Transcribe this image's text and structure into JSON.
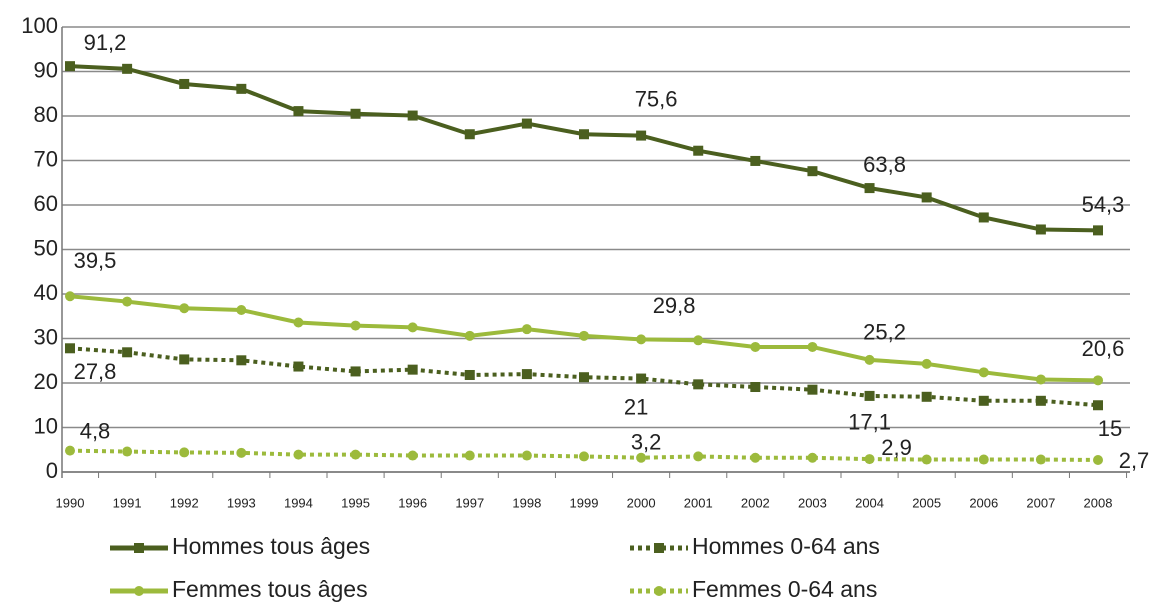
{
  "chart_data": {
    "type": "line",
    "categories": [
      "1990",
      "1991",
      "1992",
      "1993",
      "1994",
      "1995",
      "1996",
      "1997",
      "1998",
      "1999",
      "2000",
      "2001",
      "2002",
      "2003",
      "2004",
      "2005",
      "2006",
      "2007",
      "2008"
    ],
    "ylim": [
      0,
      100
    ],
    "yticks": [
      0,
      10,
      20,
      30,
      40,
      50,
      60,
      70,
      80,
      90,
      100
    ],
    "grid": true,
    "series": [
      {
        "name": "Hommes tous âges",
        "color": "#4b5f1f",
        "marker": "square",
        "dash": "solid",
        "values": [
          91.2,
          90.6,
          87.2,
          86.1,
          81.1,
          80.5,
          80.1,
          75.9,
          78.3,
          75.9,
          75.6,
          72.2,
          69.9,
          67.6,
          63.8,
          61.7,
          57.2,
          54.5,
          54.3
        ],
        "value_labels": [
          "91,2",
          null,
          null,
          null,
          null,
          null,
          null,
          null,
          null,
          null,
          "75,6",
          null,
          null,
          null,
          "63,8",
          null,
          null,
          null,
          "54,3"
        ]
      },
      {
        "name": "Hommes 0-64 ans",
        "color": "#4b5f1f",
        "marker": "square",
        "dash": "dotted",
        "values": [
          27.8,
          26.9,
          25.3,
          25.1,
          23.7,
          22.6,
          23.0,
          21.8,
          22.0,
          21.3,
          21,
          19.7,
          19.1,
          18.5,
          17.1,
          16.9,
          16.0,
          16.0,
          15
        ],
        "value_labels": [
          "27,8",
          null,
          null,
          null,
          null,
          null,
          null,
          null,
          null,
          null,
          "21",
          null,
          null,
          null,
          "17,1",
          null,
          null,
          null,
          "15"
        ]
      },
      {
        "name": "Femmes tous âges",
        "color": "#9cba3c",
        "marker": "circle",
        "dash": "solid",
        "values": [
          39.5,
          38.3,
          36.8,
          36.4,
          33.6,
          32.9,
          32.5,
          30.6,
          32.1,
          30.6,
          29.8,
          29.6,
          28.1,
          28.1,
          25.2,
          24.3,
          22.4,
          20.8,
          20.6
        ],
        "value_labels": [
          "39,5",
          null,
          null,
          null,
          null,
          null,
          null,
          null,
          null,
          null,
          "29,8",
          null,
          null,
          null,
          "25,2",
          null,
          null,
          null,
          "20,6"
        ]
      },
      {
        "name": "Femmes 0-64 ans",
        "color": "#9cba3c",
        "marker": "circle",
        "dash": "dotted",
        "values": [
          4.8,
          4.6,
          4.4,
          4.3,
          3.9,
          3.9,
          3.7,
          3.7,
          3.7,
          3.5,
          3.2,
          3.5,
          3.2,
          3.2,
          2.9,
          2.8,
          2.8,
          2.8,
          2.7
        ],
        "value_labels": [
          "4,8",
          null,
          null,
          null,
          null,
          null,
          null,
          null,
          null,
          null,
          "3,2",
          null,
          null,
          null,
          "2,9",
          null,
          null,
          null,
          "2,7"
        ]
      }
    ]
  }
}
